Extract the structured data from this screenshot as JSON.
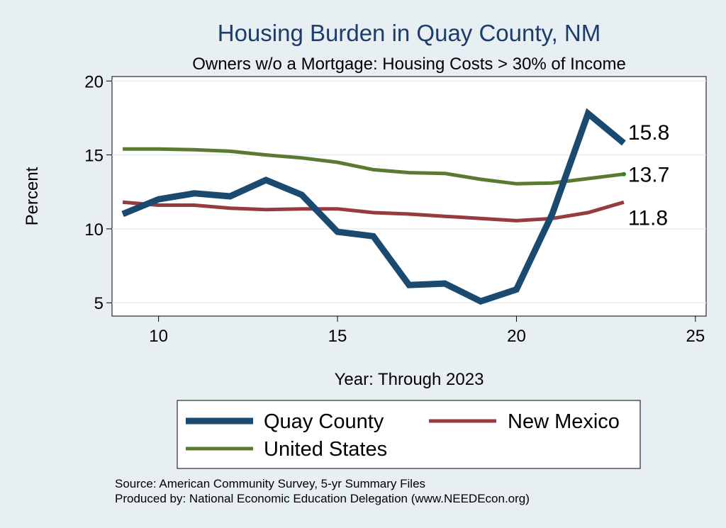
{
  "chart_data": {
    "type": "line",
    "title": "Housing Burden in Quay County, NM",
    "subtitle": "Owners w/o a Mortgage: Housing Costs > 30% of Income",
    "xlabel": "Year: Through 2023",
    "ylabel": "Percent",
    "xlim": [
      8.7,
      25.3
    ],
    "ylim": [
      4.1,
      20.3
    ],
    "xticks": [
      10,
      15,
      20,
      25
    ],
    "yticks": [
      5,
      10,
      15,
      20
    ],
    "grid": "horizontal",
    "x": [
      9,
      10,
      11,
      12,
      13,
      14,
      15,
      16,
      17,
      18,
      19,
      20,
      21,
      22,
      23
    ],
    "series": [
      {
        "name": "Quay County",
        "color": "#1b4a70",
        "width": 9,
        "values": [
          11.0,
          12.0,
          12.4,
          12.2,
          13.3,
          12.3,
          9.8,
          9.5,
          6.2,
          6.3,
          5.1,
          5.9,
          11.0,
          17.8,
          15.8
        ],
        "end_label": "15.8"
      },
      {
        "name": "New Mexico",
        "color": "#963b3f",
        "width": 5,
        "values": [
          11.8,
          11.6,
          11.6,
          11.4,
          11.3,
          11.35,
          11.35,
          11.1,
          11.0,
          10.85,
          10.7,
          10.55,
          10.7,
          11.1,
          11.8
        ],
        "end_label": "11.8"
      },
      {
        "name": "United States",
        "color": "#5a7a32",
        "width": 5,
        "values": [
          15.4,
          15.4,
          15.35,
          15.25,
          15.0,
          14.8,
          14.5,
          14.0,
          13.8,
          13.75,
          13.35,
          13.05,
          13.1,
          13.4,
          13.7
        ],
        "end_label": "13.7"
      }
    ],
    "legend": {
      "placement": "bottom",
      "items": [
        "Quay County",
        "New Mexico",
        "United States"
      ]
    },
    "notes": [
      "Source: American Community Survey, 5-yr Summary Files",
      "Produced by: National Economic Education Delegation (www.NEEDEcon.org)"
    ]
  }
}
